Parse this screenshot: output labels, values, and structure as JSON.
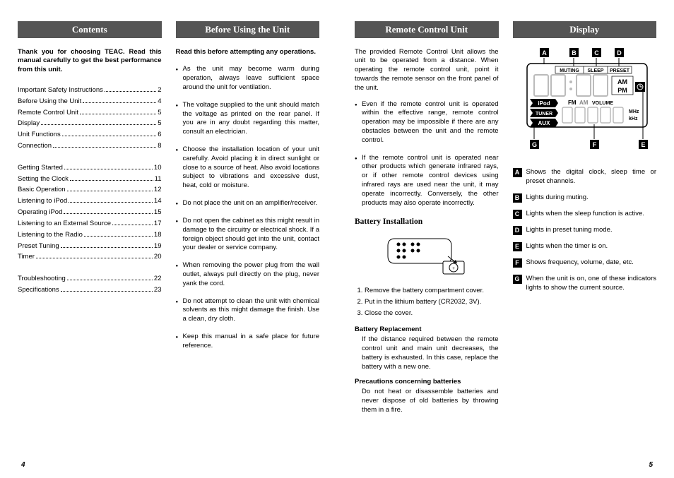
{
  "page_left_num": "4",
  "page_right_num": "5",
  "col1": {
    "header": "Contents",
    "intro": "Thank you for choosing TEAC. Read this manual carefully to get the best performance from this unit.",
    "toc_groups": [
      [
        {
          "t": "Important Safety Instructions",
          "p": "2"
        },
        {
          "t": "Before Using the Unit",
          "p": "4"
        },
        {
          "t": "Remote Control Unit",
          "p": "5"
        },
        {
          "t": "Display",
          "p": "5"
        },
        {
          "t": "Unit Functions",
          "p": "6"
        },
        {
          "t": "Connection",
          "p": "8"
        }
      ],
      [
        {
          "t": "Getting Started",
          "p": "10"
        },
        {
          "t": "Setting the Clock",
          "p": "11"
        },
        {
          "t": "Basic Operation",
          "p": "12"
        },
        {
          "t": "Listening to iPod",
          "p": "14"
        },
        {
          "t": "Operating iPod",
          "p": "15"
        },
        {
          "t": "Listening to an External Source",
          "p": "17"
        },
        {
          "t": "Listening to the Radio",
          "p": "18"
        },
        {
          "t": "Preset Tuning",
          "p": "19"
        },
        {
          "t": "Timer",
          "p": "20"
        }
      ],
      [
        {
          "t": "Troubleshooting",
          "p": "22"
        },
        {
          "t": "Specifications",
          "p": "23"
        }
      ]
    ]
  },
  "col2": {
    "header": "Before Using the Unit",
    "subintro": "Read this before attempting any operations.",
    "bullets": [
      "As the unit may become warm during operation, always leave sufficient space around the unit for ventilation.",
      "The voltage supplied to the unit should match the voltage as printed on the rear panel. If you are in any doubt regarding this matter, consult an electrician.",
      "Choose the installation location of your unit carefully. Avoid placing it in direct sunlight or close to a source of heat. Also avoid locations subject to vibrations and excessive dust, heat, cold or moisture.",
      "Do not place the unit on an amplifier/receiver.",
      "Do not open the cabinet as this might result in damage to the circuitry or electrical shock. If a foreign object should get into the unit, contact your dealer or service company.",
      "When removing the power plug from the wall outlet, always pull directly on the plug, never yank the cord.",
      "Do not attempt to clean the unit with chemical solvents as this might damage the finish. Use a clean, dry cloth.",
      "Keep this manual in a safe place for future reference."
    ]
  },
  "col3": {
    "header": "Remote Control Unit",
    "intro": "The provided Remote Control Unit allows the unit to be operated from a distance. When operating the remote control unit, point it towards the remote sensor on the front panel of the unit.",
    "bullets": [
      "Even if the remote control unit is operated within the effective range, remote control operation may be impossible if there are any obstacles between the unit and the remote control.",
      "If the remote control unit is operated near other products which generate infrared rays, or if other remote control devices using infrared rays are used near the unit, it may operate incorrectly. Conversely, the other products may also operate incorrectly."
    ],
    "battery_head": "Battery Installation",
    "steps": [
      "Remove the battery compartment cover.",
      "Put in the lithium battery (CR2032, 3V).",
      "Close the cover."
    ],
    "repl_head": "Battery Replacement",
    "repl_text": "If the distance required between the remote control unit and main unit decreases, the battery is exhausted. In this case, replace the battery with a new one.",
    "prec_head": "Precautions concerning batteries",
    "prec_text": "Do not heat or disassemble batteries and never dispose of old batteries by throwing them in a fire."
  },
  "col4": {
    "header": "Display",
    "lcd": {
      "top_labels": [
        "A",
        "B",
        "C",
        "D"
      ],
      "muting": "MUTING",
      "sleep": "SLEEP",
      "preset": "PRESET",
      "ampm_am": "AM",
      "ampm_pm": "PM",
      "ipod": "iPod",
      "tuner": "TUNER",
      "aux": "AUX",
      "fm": "FM",
      "am": "AM",
      "volume": "VOLUME",
      "mhz": "MHz",
      "khz": "kHz",
      "bottom_labels": [
        "G",
        "F",
        "E"
      ]
    },
    "legend": [
      {
        "k": "A",
        "t": "Shows the digital clock, sleep time or preset channels."
      },
      {
        "k": "B",
        "t": "Lights during muting."
      },
      {
        "k": "C",
        "t": "Lights when the sleep function is active."
      },
      {
        "k": "D",
        "t": "Lights in preset tuning mode."
      },
      {
        "k": "E",
        "t": "Lights when the timer is on."
      },
      {
        "k": "F",
        "t": "Shows frequency, volume, date, etc."
      },
      {
        "k": "G",
        "t": "When the unit is on, one of these indicators lights to show the current source."
      }
    ]
  }
}
